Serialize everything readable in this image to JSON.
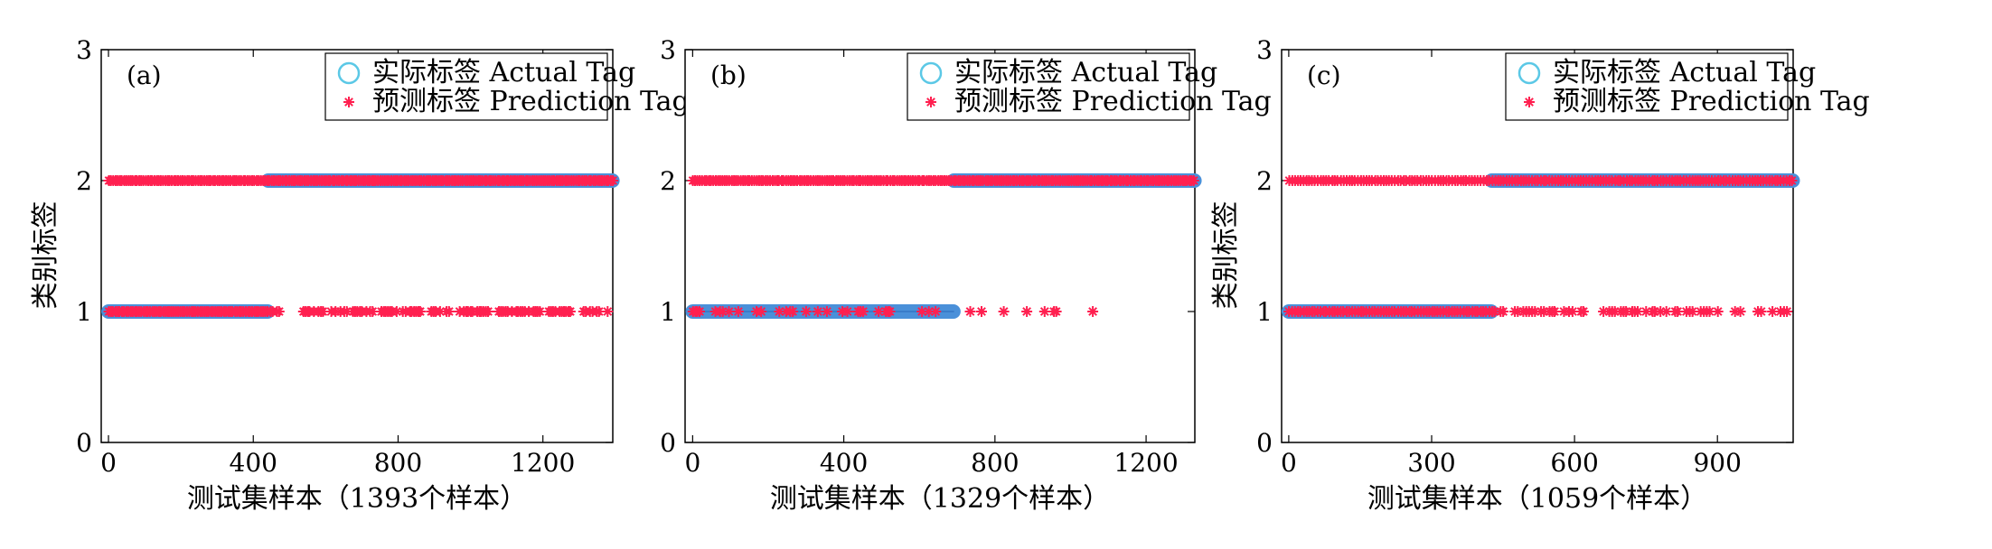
{
  "chart_data": [
    {
      "type": "scatter",
      "panel_label": "(a)",
      "xlabel": "测试集样本（1393个样本）",
      "ylabel": "类别标签",
      "xlim": [
        -20,
        1393
      ],
      "ylim": [
        0,
        3
      ],
      "xticks": [
        "0",
        "400",
        "800",
        "1200"
      ],
      "xtick_values": [
        0,
        400,
        800,
        1200
      ],
      "yticks": [
        "0",
        "1",
        "2",
        "3"
      ],
      "legend": {
        "placement": "top-right",
        "entries": [
          "实际标签 Actual Tag",
          "预测标签 Prediction Tag"
        ]
      },
      "series": [
        {
          "name": "实际标签 Actual Tag",
          "marker": "circle",
          "color": "#4a90d9",
          "segments": [
            {
              "y": 1,
              "x_start": 0,
              "x_end": 440
            },
            {
              "y": 2,
              "x_start": 441,
              "x_end": 1392
            }
          ]
        },
        {
          "name": "预测标签 Prediction Tag",
          "marker": "asterisk",
          "color": "#ff2050",
          "runs": [
            {
              "y": 2,
              "x_start": 0,
              "x_end": 1392,
              "density": 1.0
            },
            {
              "y": 1,
              "x_start": 0,
              "x_end": 440,
              "density": 1.0
            },
            {
              "y": 1,
              "x_start": 441,
              "x_end": 1392,
              "density": 0.55
            }
          ]
        }
      ]
    },
    {
      "type": "scatter",
      "panel_label": "(b)",
      "xlabel": "测试集样本（1329个样本）",
      "ylabel": "",
      "xlim": [
        -20,
        1329
      ],
      "ylim": [
        0,
        3
      ],
      "xticks": [
        "0",
        "400",
        "800",
        "1200"
      ],
      "xtick_values": [
        0,
        400,
        800,
        1200
      ],
      "yticks": [
        "0",
        "1",
        "2",
        "3"
      ],
      "legend": {
        "placement": "top-right",
        "entries": [
          "实际标签 Actual Tag",
          "预测标签 Prediction Tag"
        ]
      },
      "series": [
        {
          "name": "实际标签 Actual Tag",
          "marker": "circle",
          "color": "#4a90d9",
          "segments": [
            {
              "y": 1,
              "x_start": 0,
              "x_end": 690
            },
            {
              "y": 2,
              "x_start": 691,
              "x_end": 1328
            }
          ]
        },
        {
          "name": "预测标签 Prediction Tag",
          "marker": "asterisk",
          "color": "#ff2050",
          "runs": [
            {
              "y": 2,
              "x_start": 0,
              "x_end": 1328,
              "density": 1.0
            },
            {
              "y": 1,
              "x_start": 0,
              "x_end": 690,
              "density": 0.25
            },
            {
              "y": 1,
              "x_start": 691,
              "x_end": 1120,
              "density": 0.08
            }
          ]
        }
      ]
    },
    {
      "type": "scatter",
      "panel_label": "(c)",
      "xlabel": "测试集样本（1059个样本）",
      "ylabel": "类别标签",
      "xlim": [
        -15,
        1059
      ],
      "ylim": [
        0,
        3
      ],
      "xticks": [
        "0",
        "300",
        "600",
        "900"
      ],
      "xtick_values": [
        0,
        300,
        600,
        900
      ],
      "yticks": [
        "0",
        "1",
        "2",
        "3"
      ],
      "legend": {
        "placement": "top-right",
        "entries": [
          "实际标签 Actual Tag",
          "预测标签 Prediction Tag"
        ]
      },
      "series": [
        {
          "name": "实际标签 Actual Tag",
          "marker": "circle",
          "color": "#4a90d9",
          "segments": [
            {
              "y": 1,
              "x_start": 0,
              "x_end": 425
            },
            {
              "y": 2,
              "x_start": 426,
              "x_end": 1058
            }
          ]
        },
        {
          "name": "预测标签 Prediction Tag",
          "marker": "asterisk",
          "color": "#ff2050",
          "runs": [
            {
              "y": 2,
              "x_start": 0,
              "x_end": 1058,
              "density": 1.0
            },
            {
              "y": 1,
              "x_start": 0,
              "x_end": 425,
              "density": 1.0
            },
            {
              "y": 1,
              "x_start": 426,
              "x_end": 1058,
              "density": 0.55
            }
          ]
        }
      ]
    }
  ]
}
